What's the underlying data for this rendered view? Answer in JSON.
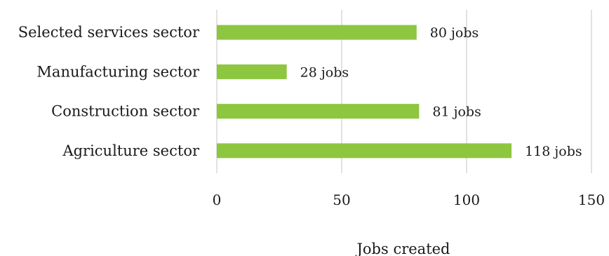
{
  "chart_data": {
    "type": "bar",
    "orientation": "horizontal",
    "categories": [
      "Selected services sector",
      "Manufacturing sector",
      "Construction sector",
      "Agriculture sector"
    ],
    "values": [
      80,
      28,
      81,
      118
    ],
    "data_labels": [
      "80 jobs",
      "28 jobs",
      "81 jobs",
      "118 jobs"
    ],
    "xlabel": "Jobs created",
    "ylabel": "",
    "xlim": [
      0,
      150
    ],
    "x_ticks": [
      0,
      50,
      100,
      150
    ],
    "x_tick_labels": [
      "0",
      "50",
      "100",
      "150"
    ],
    "grid": "vertical",
    "legend": "none",
    "bar_color": "#8dc63f",
    "grid_color": "#d9d9d9"
  }
}
